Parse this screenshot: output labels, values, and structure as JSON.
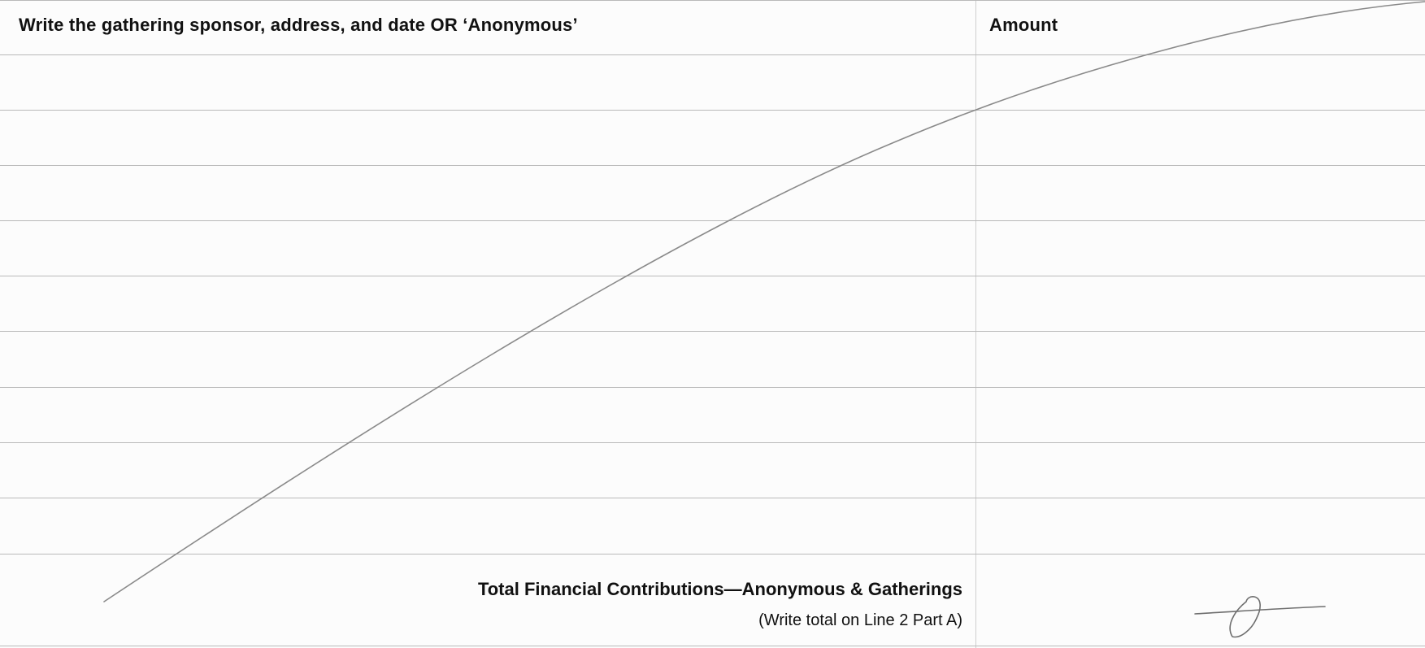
{
  "form": {
    "column_headers": {
      "description": "Write the gathering sponsor, address, and date OR ‘Anonymous’",
      "amount": "Amount"
    },
    "total": {
      "label": "Total Financial Contributions—Anonymous & Gatherings",
      "note": "(Write total on Line 2 Part A)"
    },
    "entry_rows": [
      {
        "description": "",
        "amount": ""
      },
      {
        "description": "",
        "amount": ""
      },
      {
        "description": "",
        "amount": ""
      },
      {
        "description": "",
        "amount": ""
      },
      {
        "description": "",
        "amount": ""
      },
      {
        "description": "",
        "amount": ""
      },
      {
        "description": "",
        "amount": ""
      },
      {
        "description": "",
        "amount": ""
      },
      {
        "description": "",
        "amount": ""
      }
    ],
    "handwritten_marks": [
      "diagonal-strike-line",
      "zero-slash-mark"
    ],
    "ink_color": "#8a8a8a"
  }
}
